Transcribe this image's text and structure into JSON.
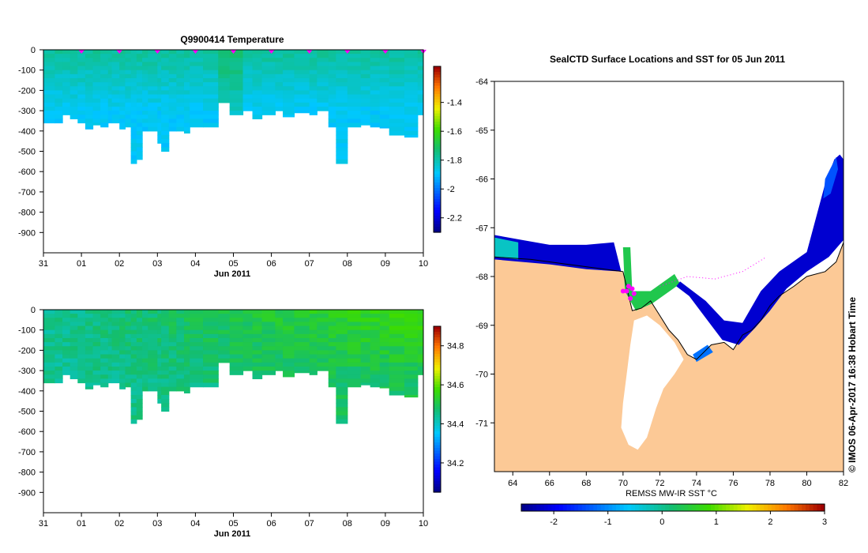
{
  "colors": {
    "land": "#fcc996",
    "mask": "#ffffff",
    "coast": "#000000",
    "marker": "#ff00ff",
    "background": "#ffffff"
  },
  "chart_data": [
    {
      "type": "heatmap",
      "name": "temperature-section",
      "title": "Q9900414  Temperature",
      "xlabel": "Jun 2011",
      "ylabel": "",
      "xlim": [
        31,
        10
      ],
      "ylim": [
        -1000,
        0
      ],
      "x_ticks": [
        "31",
        "01",
        "02",
        "03",
        "04",
        "05",
        "06",
        "07",
        "08",
        "09",
        "10"
      ],
      "y_ticks": [
        "0",
        "-100",
        "-200",
        "-300",
        "-400",
        "-500",
        "-600",
        "-700",
        "-800",
        "-900"
      ],
      "profile_days": [
        0.0,
        0.3,
        0.5,
        0.7,
        0.9,
        1.1,
        1.3,
        1.5,
        1.7,
        1.8,
        2.0,
        2.15,
        2.3,
        2.45,
        2.6,
        2.75,
        3.0,
        3.1,
        3.3,
        3.5,
        3.7,
        3.85,
        4.2,
        4.6,
        4.9,
        5.25,
        5.5,
        5.75,
        6.1,
        6.3,
        6.6,
        7.0,
        7.2,
        7.5,
        7.7,
        8.0,
        8.35,
        8.6,
        8.85,
        9.1,
        9.5,
        9.85,
        10.0
      ],
      "profile_depths": [
        360,
        360,
        320,
        340,
        360,
        390,
        370,
        380,
        360,
        360,
        390,
        380,
        560,
        540,
        400,
        400,
        460,
        500,
        400,
        400,
        410,
        380,
        380,
        260,
        320,
        300,
        340,
        320,
        300,
        330,
        310,
        320,
        300,
        380,
        560,
        380,
        370,
        380,
        385,
        420,
        430,
        320,
        350
      ],
      "surface_markers": [
        1,
        2,
        3,
        4,
        5,
        6,
        7,
        8,
        9,
        10
      ],
      "colorbar": {
        "min": -2.3,
        "max": -1.15,
        "ticks": [
          "-1.4",
          "-1.6",
          "-1.8",
          "-2",
          "-2.2"
        ],
        "tick_values": [
          -1.4,
          -1.6,
          -1.8,
          -2.0,
          -2.2
        ]
      },
      "value_range": [
        -1.95,
        -1.75
      ]
    },
    {
      "type": "heatmap",
      "name": "salinity-section",
      "title": "",
      "xlabel": "Jun 2011",
      "ylabel": "",
      "xlim": [
        31,
        10
      ],
      "ylim": [
        -1000,
        0
      ],
      "x_ticks": [
        "31",
        "01",
        "02",
        "03",
        "04",
        "05",
        "06",
        "07",
        "08",
        "09",
        "10"
      ],
      "y_ticks": [
        "0",
        "-100",
        "-200",
        "-300",
        "-400",
        "-500",
        "-600",
        "-700",
        "-800",
        "-900"
      ],
      "colorbar": {
        "min": 34.05,
        "max": 34.9,
        "ticks": [
          "34.8",
          "34.6",
          "34.4",
          "34.2"
        ],
        "tick_values": [
          34.8,
          34.6,
          34.4,
          34.2
        ]
      },
      "value_range": [
        34.38,
        34.62
      ]
    },
    {
      "type": "heatmap",
      "name": "sst-map",
      "title": "SealCTD Surface Locations and SST for 05 Jun 2011",
      "xlim": [
        63,
        82
      ],
      "ylim": [
        -72,
        -64
      ],
      "x_ticks": [
        "64",
        "66",
        "68",
        "70",
        "72",
        "74",
        "76",
        "78",
        "80",
        "82"
      ],
      "x_tick_values": [
        64,
        66,
        68,
        70,
        72,
        74,
        76,
        78,
        80,
        82
      ],
      "y_ticks": [
        "-64",
        "-65",
        "-66",
        "-67",
        "-68",
        "-69",
        "-70",
        "-71"
      ],
      "y_tick_values": [
        -64,
        -65,
        -66,
        -67,
        -68,
        -69,
        -70,
        -71
      ],
      "colorbar_label": "REMSS MW-IR SST °C",
      "colorbar": {
        "min": -2.6,
        "max": 3.0,
        "ticks": [
          "-2",
          "-1",
          "0",
          "1",
          "2",
          "3"
        ],
        "tick_values": [
          -2,
          -1,
          0,
          1,
          2,
          3
        ]
      },
      "coastline": [
        [
          63,
          -67.6
        ],
        [
          65,
          -67.65
        ],
        [
          67,
          -67.75
        ],
        [
          69,
          -67.85
        ],
        [
          70,
          -67.9
        ],
        [
          70.5,
          -68.7
        ],
        [
          71,
          -68.65
        ],
        [
          71.5,
          -68.5
        ],
        [
          72,
          -68.8
        ],
        [
          72.5,
          -69.1
        ],
        [
          73,
          -69.3
        ],
        [
          73.5,
          -69.6
        ],
        [
          74,
          -69.7
        ],
        [
          74.8,
          -69.4
        ],
        [
          75.5,
          -69.35
        ],
        [
          76,
          -69.5
        ],
        [
          76.5,
          -69.2
        ],
        [
          77,
          -69.1
        ],
        [
          77.5,
          -68.9
        ],
        [
          78,
          -68.6
        ],
        [
          78.5,
          -68.4
        ],
        [
          79.3,
          -68.2
        ],
        [
          80,
          -68.0
        ],
        [
          81,
          -67.9
        ],
        [
          81.6,
          -67.7
        ],
        [
          82,
          -67.3
        ]
      ],
      "ice_shelf": [
        [
          70.6,
          -68.9
        ],
        [
          71.3,
          -68.8
        ],
        [
          72.0,
          -69.0
        ],
        [
          72.8,
          -69.35
        ],
        [
          73.3,
          -69.7
        ],
        [
          72.8,
          -70.0
        ],
        [
          72.2,
          -70.3
        ],
        [
          71.8,
          -70.7
        ],
        [
          71.3,
          -71.3
        ],
        [
          70.8,
          -71.55
        ],
        [
          70.3,
          -71.45
        ],
        [
          69.9,
          -71.1
        ],
        [
          70.0,
          -70.6
        ],
        [
          70.2,
          -70.0
        ],
        [
          70.4,
          -69.4
        ]
      ],
      "seal_track": [
        [
          70.0,
          -68.3
        ],
        [
          70.3,
          -68.2
        ],
        [
          70.5,
          -68.25
        ],
        [
          70.6,
          -68.35
        ],
        [
          70.4,
          -68.45
        ],
        [
          70.2,
          -68.3
        ]
      ],
      "other_tracks": [
        [
          72.0,
          -68.2
        ],
        [
          73.5,
          -68.0
        ],
        [
          75.0,
          -68.05
        ],
        [
          76.5,
          -67.9
        ],
        [
          77.8,
          -67.6
        ]
      ],
      "sst_bands": [
        {
          "name": "west-coast",
          "value": -2.2,
          "points": [
            [
              63,
              -67.15
            ],
            [
              64.5,
              -67.25
            ],
            [
              66,
              -67.35
            ],
            [
              68,
              -67.35
            ],
            [
              69.5,
              -67.3
            ],
            [
              69.9,
              -67.9
            ],
            [
              68,
              -67.85
            ],
            [
              66,
              -67.75
            ],
            [
              63,
              -67.65
            ]
          ]
        },
        {
          "name": "west-teal",
          "value": -0.3,
          "points": [
            [
              63,
              -67.2
            ],
            [
              64.3,
              -67.3
            ],
            [
              64.3,
              -67.65
            ],
            [
              63,
              -67.6
            ]
          ]
        },
        {
          "name": "mid-green",
          "value": 0.4,
          "points": [
            [
              70.0,
              -67.4
            ],
            [
              70.4,
              -67.4
            ],
            [
              70.5,
              -68.3
            ],
            [
              71.5,
              -68.3
            ],
            [
              72.8,
              -67.95
            ],
            [
              73.1,
              -68.15
            ],
            [
              71.6,
              -68.55
            ],
            [
              70.7,
              -68.7
            ],
            [
              70.1,
              -68.3
            ]
          ]
        },
        {
          "name": "east-coast",
          "value": -2.2,
          "points": [
            [
              73.1,
              -68.1
            ],
            [
              74.5,
              -68.5
            ],
            [
              75.5,
              -68.9
            ],
            [
              76.5,
              -68.95
            ],
            [
              77.5,
              -68.3
            ],
            [
              78.5,
              -67.9
            ],
            [
              80.0,
              -67.5
            ],
            [
              80.5,
              -66.8
            ],
            [
              81.0,
              -66.1
            ],
            [
              81.5,
              -65.6
            ],
            [
              81.8,
              -65.5
            ],
            [
              82,
              -65.6
            ],
            [
              82,
              -67.25
            ],
            [
              81.2,
              -67.6
            ],
            [
              80.0,
              -67.9
            ],
            [
              78.9,
              -68.25
            ],
            [
              78.0,
              -68.7
            ],
            [
              77.2,
              -69.05
            ],
            [
              76.3,
              -69.4
            ],
            [
              75.4,
              -69.3
            ],
            [
              74.5,
              -68.85
            ],
            [
              73.6,
              -68.4
            ],
            [
              72.9,
              -68.2
            ]
          ]
        },
        {
          "name": "east-cyan",
          "value": -1.4,
          "points": [
            [
              81.0,
              -66.0
            ],
            [
              81.6,
              -65.55
            ],
            [
              81.7,
              -65.8
            ],
            [
              81.3,
              -66.3
            ],
            [
              80.9,
              -66.4
            ]
          ]
        },
        {
          "name": "south-cyan",
          "value": -1.2,
          "points": [
            [
              73.8,
              -69.6
            ],
            [
              74.6,
              -69.4
            ],
            [
              74.9,
              -69.55
            ],
            [
              74.0,
              -69.75
            ]
          ]
        }
      ]
    }
  ]
}
